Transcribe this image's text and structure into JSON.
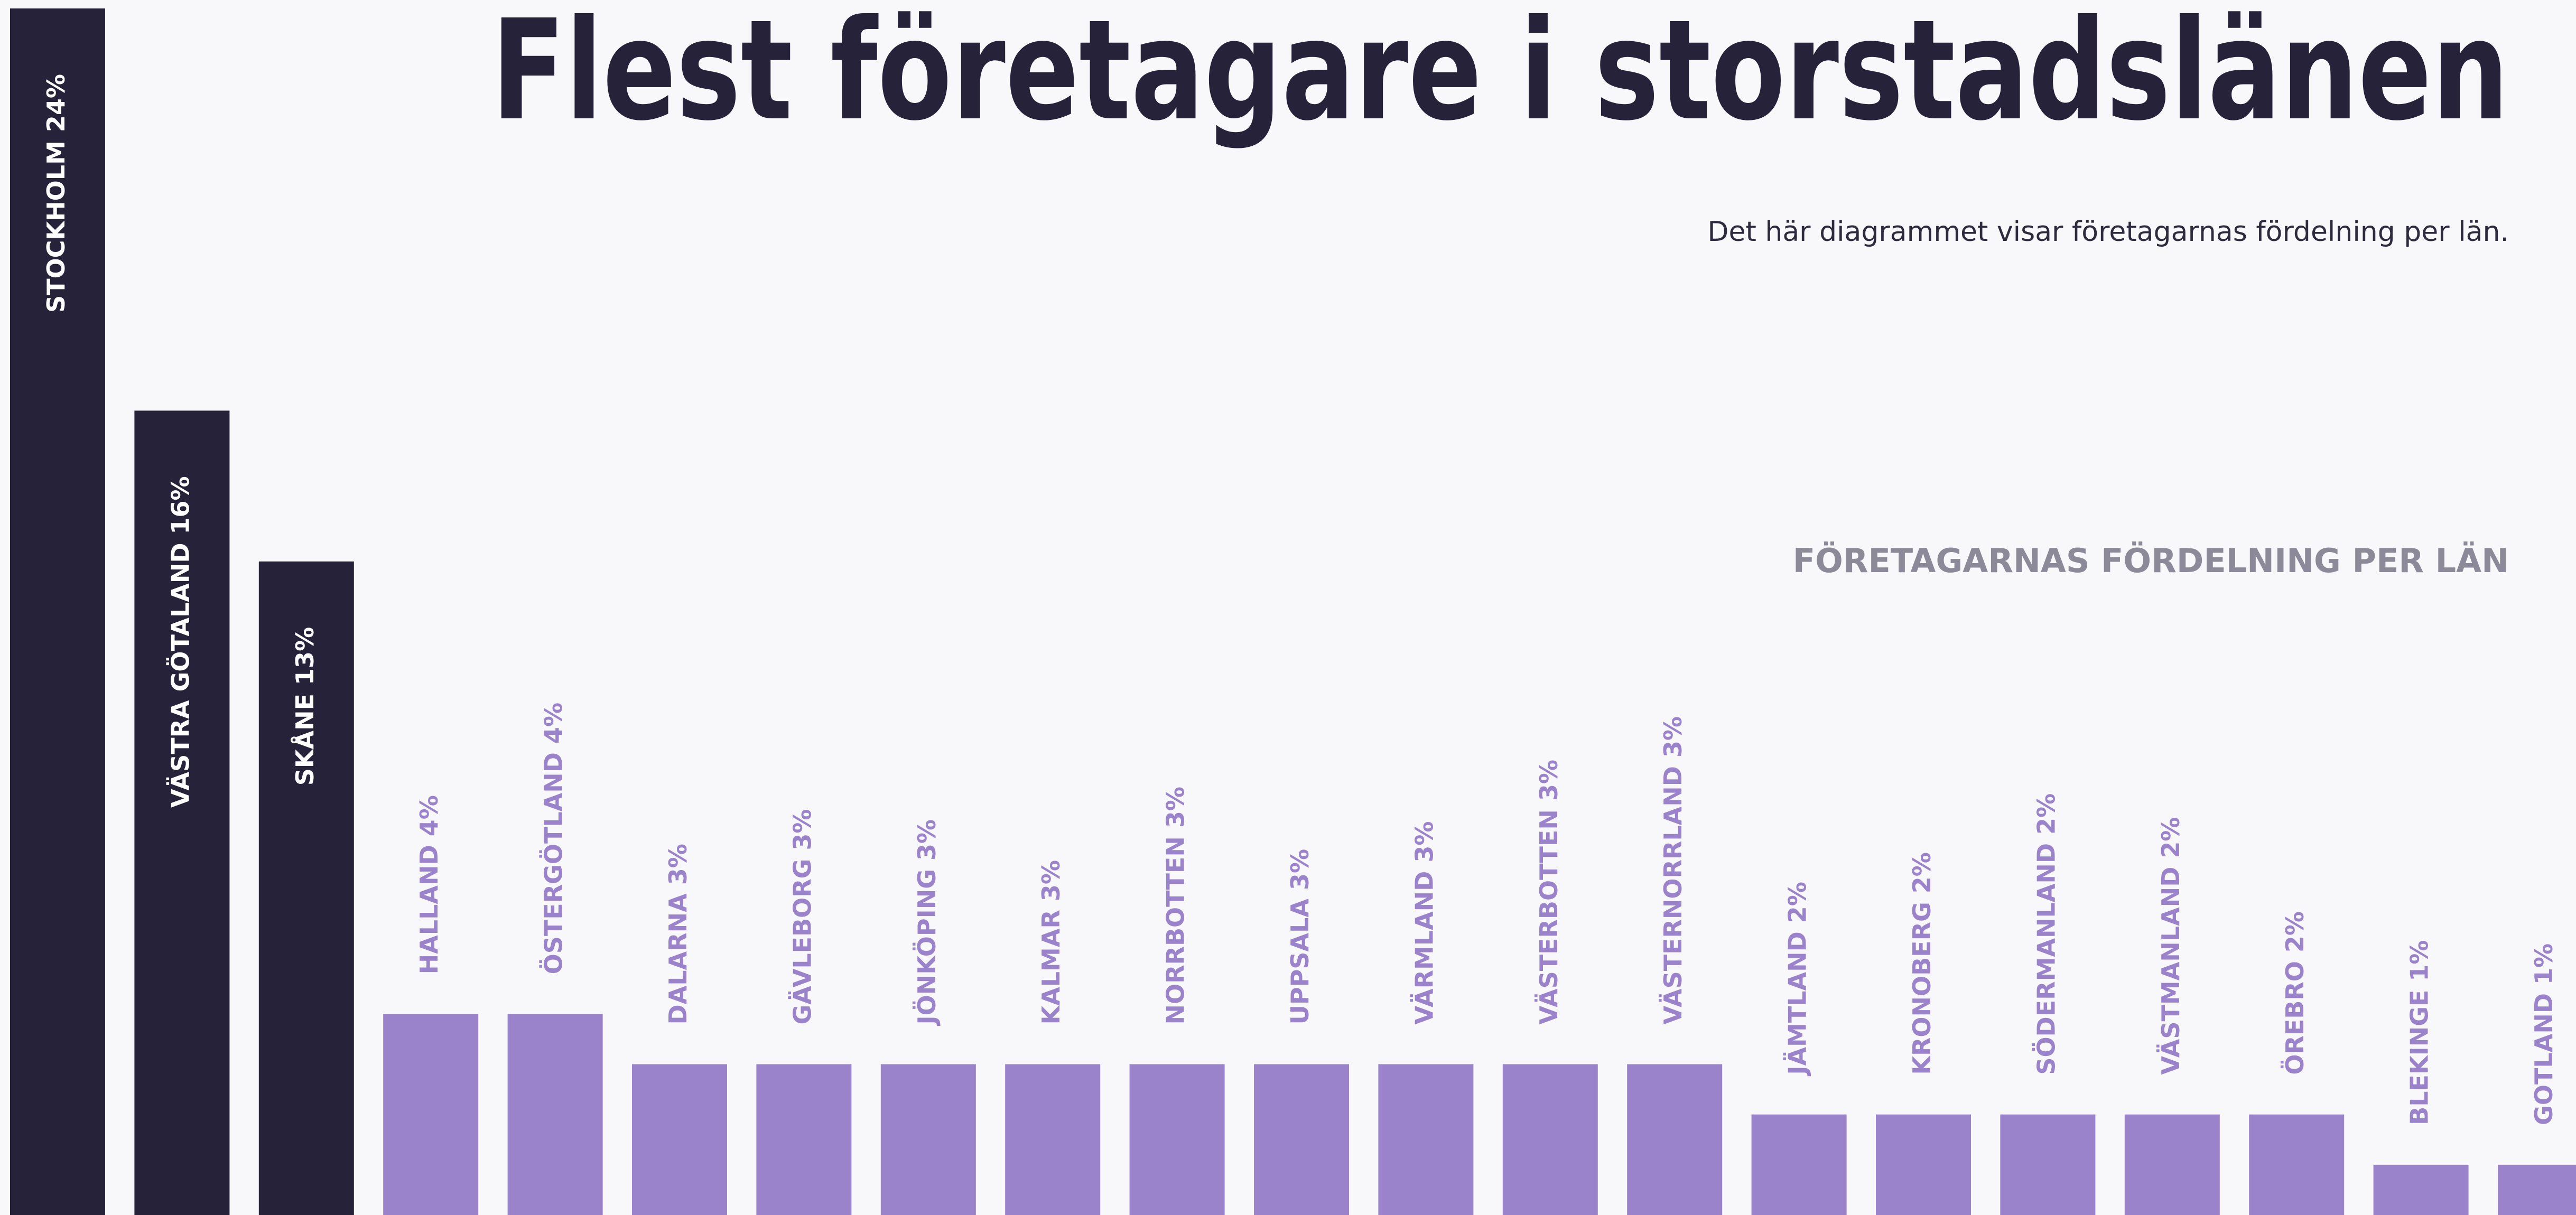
{
  "chart_data": {
    "type": "bar",
    "title": "Flest företagare i storstadslänen",
    "subtitle": "Det här diagrammet visar företagarnas fördelning per län.",
    "chart_title": "FÖRETAGARNAS FÖRDELNING PER LÄN",
    "categories": [
      "STOCKHOLM",
      "VÄSTRA GÖTALAND",
      "SKÅNE",
      "HALLAND",
      "ÖSTERGÖTLAND",
      "DALARNA",
      "GÄVLEBORG",
      "JÖNKÖPING",
      "KALMAR",
      "NORRBOTTEN",
      "UPPSALA",
      "VÄRMLAND",
      "VÄSTERBOTTEN",
      "VÄSTERNORRLAND",
      "JÄMTLAND",
      "KRONOBERG",
      "SÖDERMANLAND",
      "VÄSTMANLAND",
      "ÖREBRO",
      "BLEKINGE",
      "GOTLAND"
    ],
    "values": [
      24,
      16,
      13,
      4,
      4,
      3,
      3,
      3,
      3,
      3,
      3,
      3,
      3,
      3,
      2,
      2,
      2,
      2,
      2,
      1,
      1
    ],
    "value_labels": [
      "24%",
      "16%",
      "13%",
      "4%",
      "4%",
      "3%",
      "3%",
      "3%",
      "3%",
      "3%",
      "3%",
      "3%",
      "3%",
      "3%",
      "2%",
      "2%",
      "2%",
      "2%",
      "2%",
      "1%",
      "1%"
    ],
    "colors": [
      "#26223a",
      "#26223a",
      "#26223a",
      "#9b83cc",
      "#9b83cc",
      "#9b83cc",
      "#9b83cc",
      "#9b83cc",
      "#9b83cc",
      "#9b83cc",
      "#9b83cc",
      "#9b83cc",
      "#9b83cc",
      "#9b83cc",
      "#9b83cc",
      "#9b83cc",
      "#9b83cc",
      "#9b83cc",
      "#9b83cc",
      "#9b83cc",
      "#9b83cc"
    ]
  }
}
